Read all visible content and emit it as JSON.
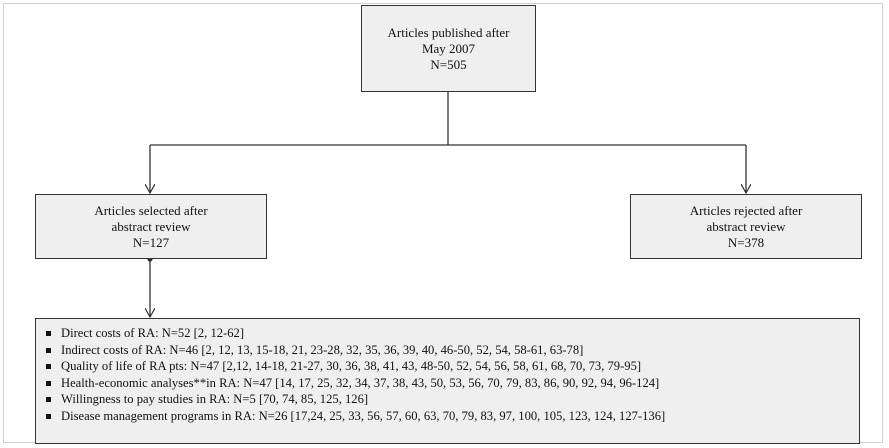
{
  "boxes": {
    "published": {
      "lines": [
        "Articles published after",
        "May 2007",
        "N=505"
      ]
    },
    "selected": {
      "lines": [
        "Articles selected after",
        "abstract review",
        "N=127"
      ]
    },
    "rejected": {
      "lines": [
        "Articles rejected after",
        "abstract review",
        "N=378"
      ]
    }
  },
  "categories": [
    "Direct costs of RA: N=52 [2, 12-62]",
    "Indirect costs of RA: N=46 [2, 12, 13, 15-18, 21, 23-28, 32, 35, 36, 39, 40, 46-50, 52, 54, 58-61, 63-78]",
    "Quality of life of RA pts: N=47 [2,12, 14-18, 21-27, 30, 36, 38, 41, 43, 48-50, 52, 54, 56, 58, 61, 68, 70, 73, 79-95]",
    "Health-economic analyses**in RA: N=47 [14, 17, 25, 32, 34, 37, 38, 43, 50, 53, 56, 70, 79, 83, 86, 90, 92, 94, 96-124]",
    "Willingness to pay studies in RA: N=5 [70, 74, 85, 125, 126]",
    "Disease management programs in RA: N=26 [17,24, 25, 33, 56, 57, 60, 63, 70, 79, 83, 97, 100, 105, 123, 124, 127-136]"
  ],
  "colors": {
    "box_fill": "#efefef",
    "line": "#333333"
  }
}
